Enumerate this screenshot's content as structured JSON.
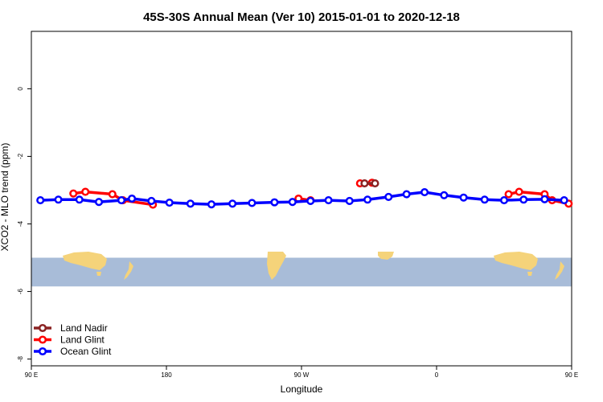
{
  "chart_data": {
    "type": "line",
    "title": "45S-30S Annual Mean (Ver 10)   2015-01-01 to 2020-12-18",
    "xlabel": "Longitude",
    "ylabel": "XCO2 - MLO trend (ppm)",
    "xlim": [
      90,
      450
    ],
    "ylim": [
      -8.2,
      1.7
    ],
    "x_ticks": [
      {
        "value": 90,
        "label": "90 E"
      },
      {
        "value": 180,
        "label": "180"
      },
      {
        "value": 270,
        "label": "90 W"
      },
      {
        "value": 360,
        "label": "0"
      },
      {
        "value": 450,
        "label": "90 E"
      },
      {
        "value": 540,
        "label": "180"
      }
    ],
    "y_ticks": [
      {
        "value": 0,
        "label": "0"
      },
      {
        "value": -2,
        "label": "-2"
      },
      {
        "value": -4,
        "label": "-4"
      },
      {
        "value": -6,
        "label": "-6"
      },
      {
        "value": -8,
        "label": "-8"
      }
    ],
    "map_strip": {
      "y_top": -5.0,
      "y_bottom": -5.85,
      "ocean_color": "#a8bcd8",
      "land_color": "#f5d37a"
    },
    "grid": false,
    "legend_position": "bottom-left",
    "series": [
      {
        "name": "Land Nadir",
        "color": "#8b2323",
        "segments": [
          [
            [
              312,
              -2.8
            ],
            [
              319,
              -2.8
            ]
          ]
        ]
      },
      {
        "name": "Land Glint",
        "color": "#ff0000",
        "segments": [
          [
            [
              118,
              -3.1
            ],
            [
              126,
              -3.05
            ],
            [
              144,
              -3.12
            ],
            [
              151,
              -3.3
            ],
            [
              171,
              -3.43
            ]
          ],
          [
            [
              268,
              -3.25
            ],
            [
              276,
              -3.3
            ]
          ],
          [
            [
              309,
              -2.8
            ],
            [
              317,
              -2.78
            ]
          ],
          [
            [
              408,
              -3.12
            ],
            [
              415,
              -3.05
            ],
            [
              432,
              -3.12
            ],
            [
              437,
              -3.3
            ],
            [
              448,
              -3.4
            ]
          ]
        ]
      },
      {
        "name": "Ocean Glint",
        "color": "#0000ff",
        "segments": [
          [
            [
              96,
              -3.3
            ],
            [
              108,
              -3.28
            ],
            [
              122,
              -3.28
            ],
            [
              135,
              -3.35
            ],
            [
              150,
              -3.3
            ],
            [
              157,
              -3.25
            ],
            [
              170,
              -3.32
            ],
            [
              182,
              -3.37
            ],
            [
              196,
              -3.4
            ],
            [
              210,
              -3.42
            ],
            [
              224,
              -3.4
            ],
            [
              237,
              -3.38
            ],
            [
              252,
              -3.36
            ],
            [
              264,
              -3.35
            ],
            [
              276,
              -3.32
            ],
            [
              288,
              -3.3
            ],
            [
              302,
              -3.32
            ],
            [
              314,
              -3.28
            ],
            [
              328,
              -3.2
            ],
            [
              340,
              -3.12
            ],
            [
              352,
              -3.06
            ],
            [
              365,
              -3.15
            ],
            [
              378,
              -3.22
            ],
            [
              392,
              -3.28
            ],
            [
              405,
              -3.3
            ],
            [
              418,
              -3.28
            ],
            [
              432,
              -3.27
            ],
            [
              445,
              -3.3
            ]
          ]
        ]
      }
    ]
  }
}
